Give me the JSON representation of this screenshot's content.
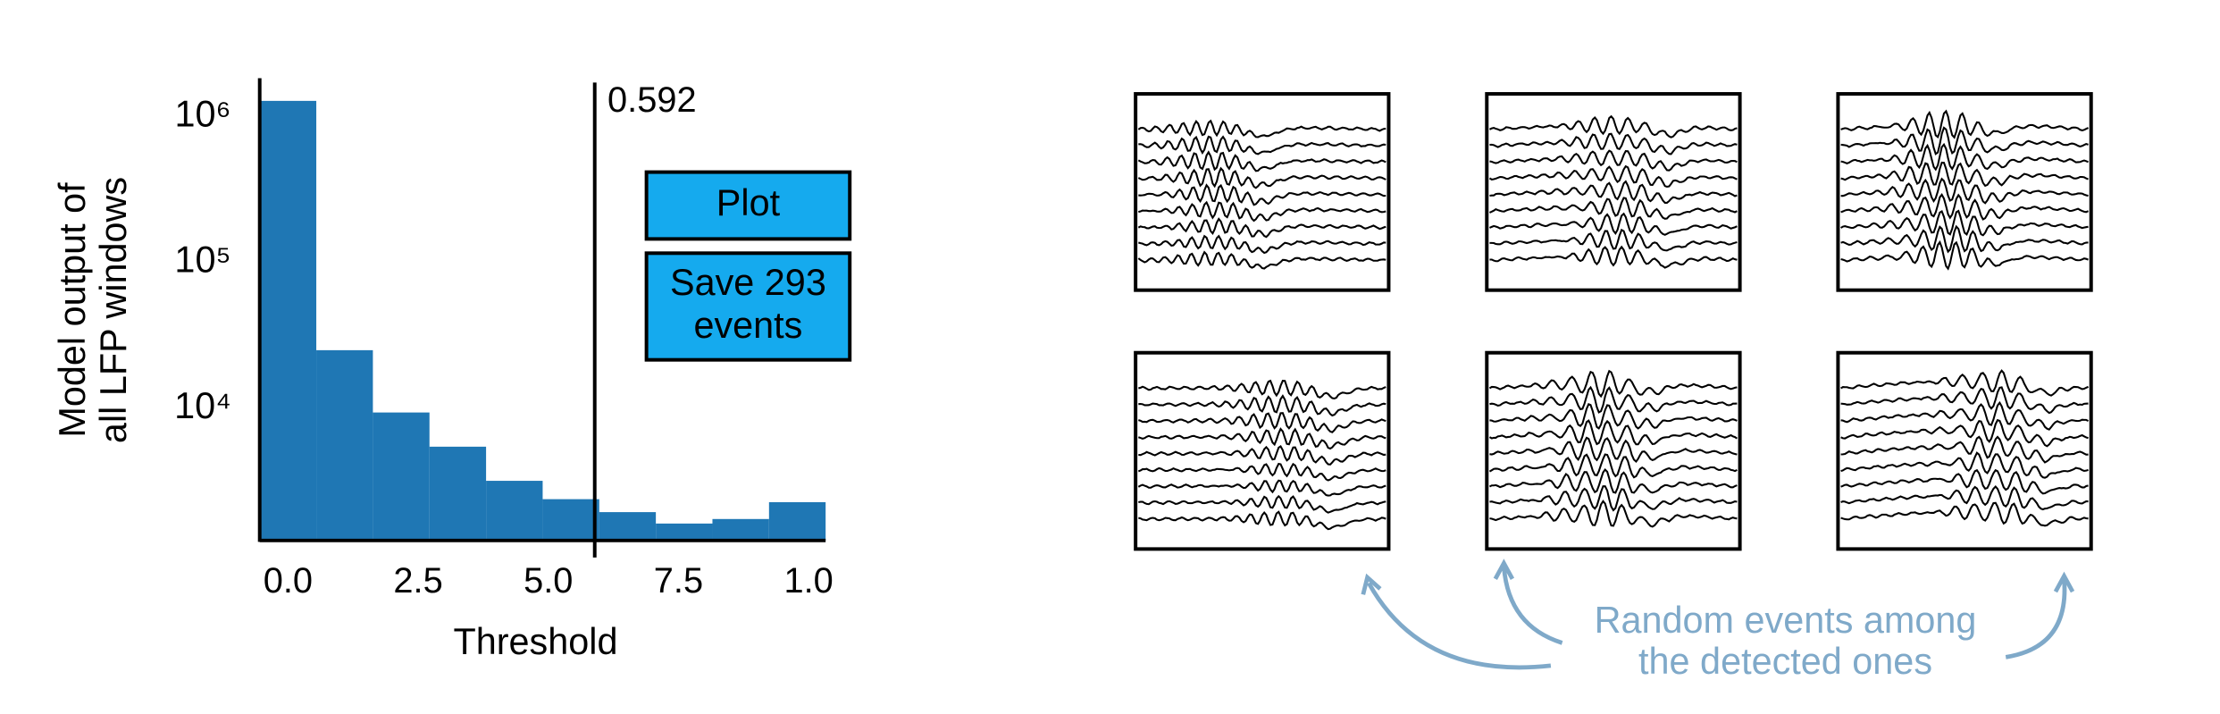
{
  "chart_data": {
    "type": "histogram",
    "bins": [
      0,
      0.1,
      0.2,
      0.3,
      0.4,
      0.5,
      0.6,
      0.7,
      0.8,
      0.9,
      1.0
    ],
    "values": [
      1280000,
      25000,
      9350,
      5450,
      3180,
      2380,
      1940,
      1620,
      1740,
      2270
    ],
    "color": "#1f77b4",
    "xlabel": "Threshold",
    "ylabel": [
      "Model output of",
      "all LFP windows"
    ],
    "xlim": [
      0,
      1
    ],
    "xticks": [
      {
        "value": 0.05,
        "label": "0.0"
      },
      {
        "value": 0.28,
        "label": "2.5"
      },
      {
        "value": 0.51,
        "label": "5.0"
      },
      {
        "value": 0.74,
        "label": "7.5"
      },
      {
        "value": 0.97,
        "label": "1.0"
      }
    ],
    "ylim": [
      1240,
      1830000
    ],
    "yscale": "log",
    "yticks": [
      {
        "value": 10000,
        "label": "10⁴"
      },
      {
        "value": 100000,
        "label": "10⁵"
      },
      {
        "value": 1000000,
        "label": "10⁶"
      }
    ],
    "grid": false,
    "threshold": 0.592
  },
  "buttons": [
    {
      "lines": [
        "Plot"
      ]
    },
    {
      "lines": [
        "Save 293",
        "events"
      ]
    }
  ],
  "annotation": [
    "Random events among",
    "the detected ones"
  ]
}
